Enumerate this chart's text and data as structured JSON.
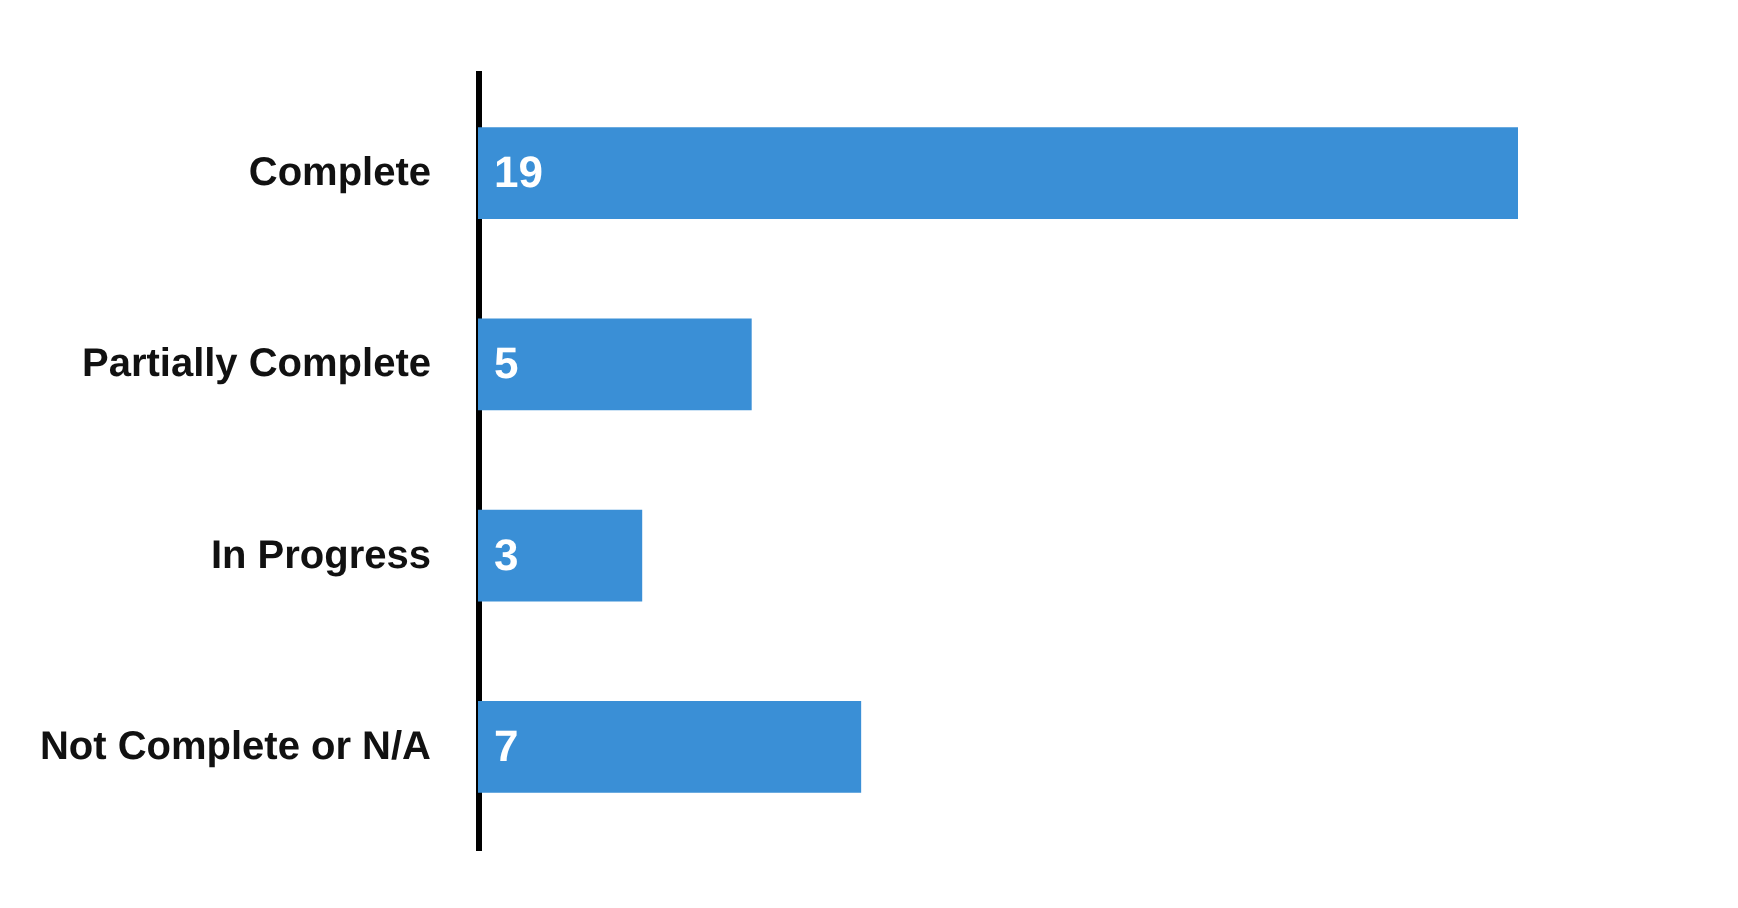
{
  "chart_data": {
    "type": "bar",
    "orientation": "horizontal",
    "categories": [
      "Complete",
      "Partially Complete",
      "In Progress",
      "Not Complete or N/A"
    ],
    "values": [
      19,
      5,
      3,
      7
    ],
    "color": "#3a8fd6",
    "data_labels": true
  }
}
